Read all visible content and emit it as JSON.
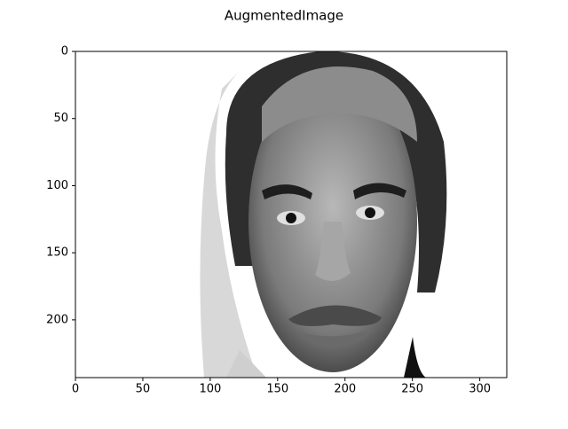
{
  "chart_data": {
    "type": "image",
    "title": "AugmentedImage",
    "xlim": [
      0,
      320
    ],
    "xticks": [
      0,
      50,
      100,
      150,
      200,
      250,
      300
    ],
    "ylim": [
      243,
      0
    ],
    "yticks": [
      0,
      50,
      100,
      150,
      200
    ]
  }
}
